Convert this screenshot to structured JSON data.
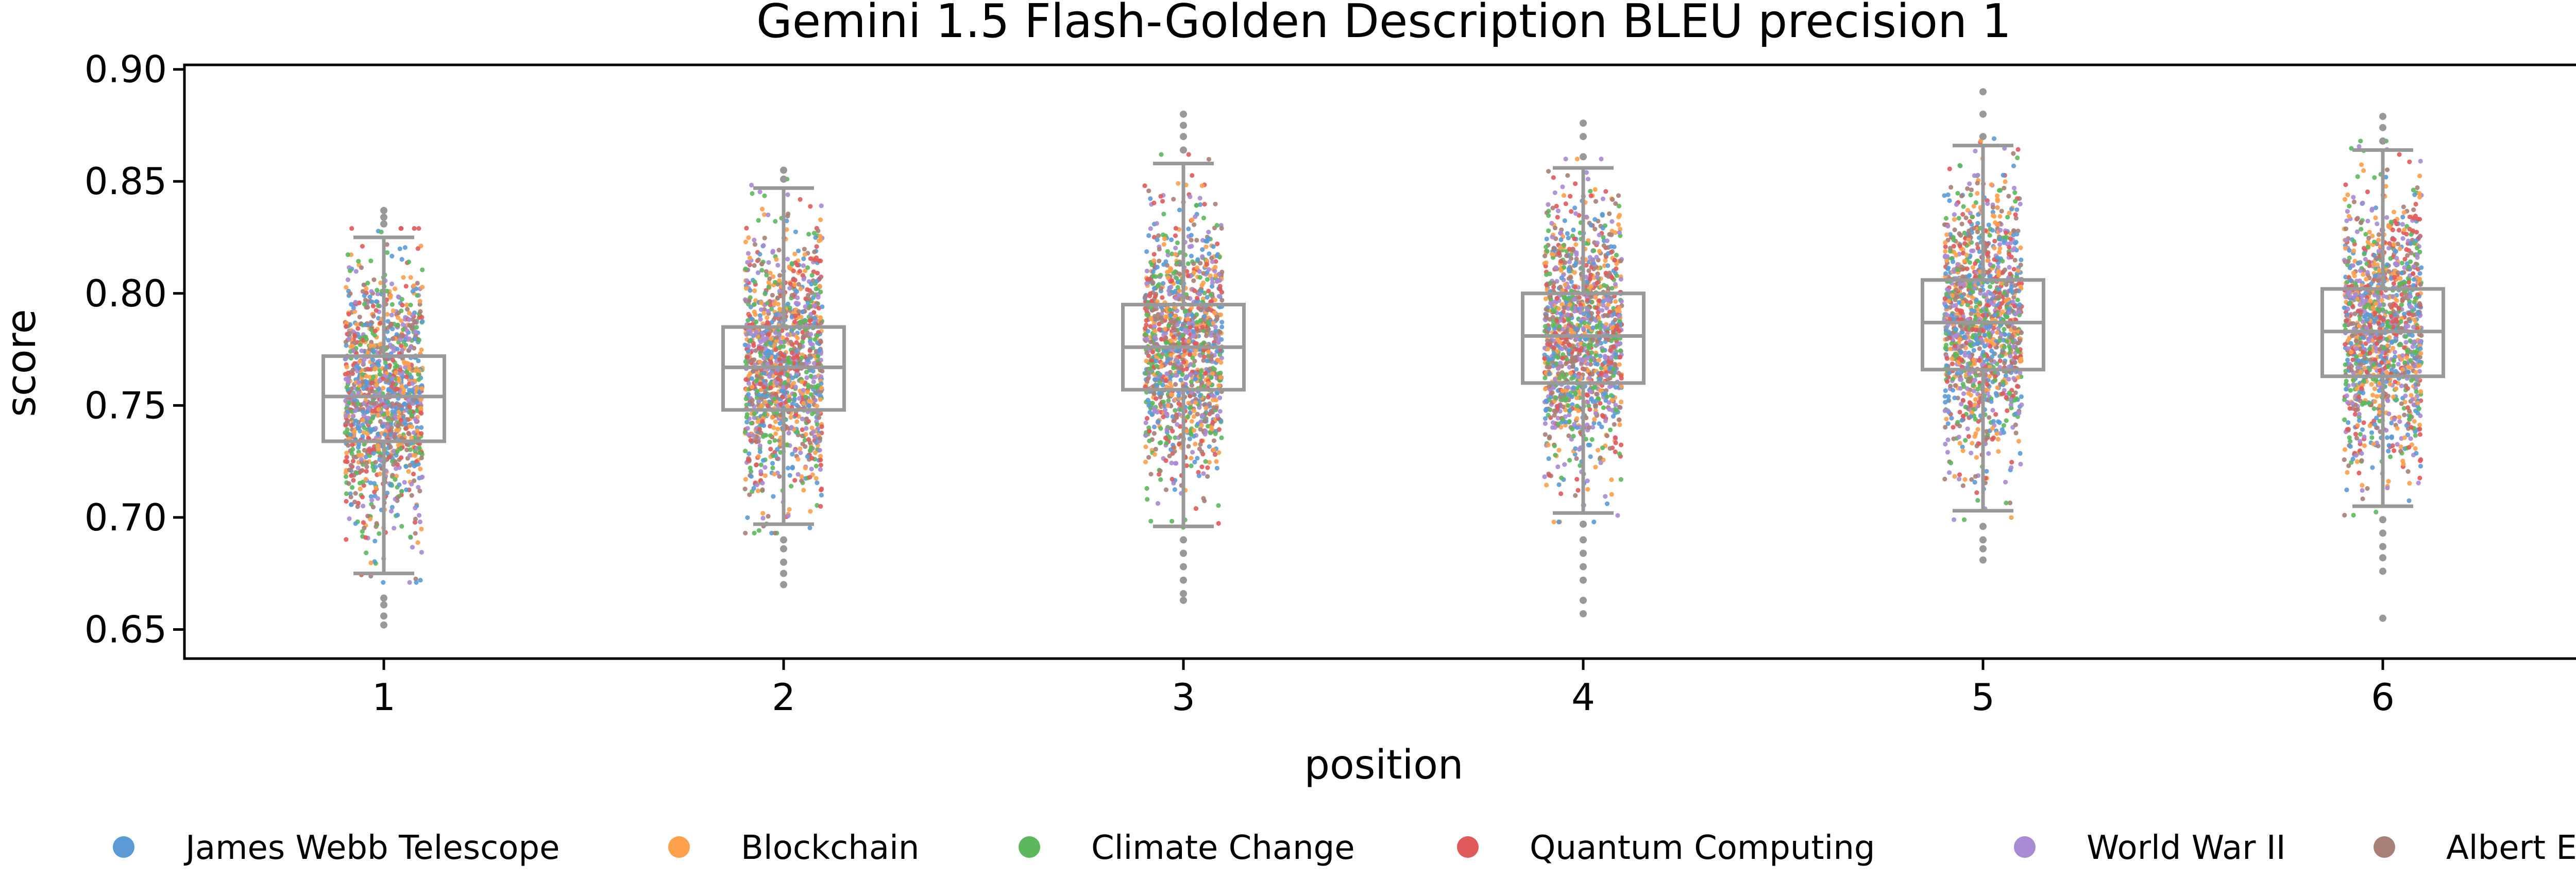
{
  "chart_data": {
    "type": "box+strip",
    "title": "Gemini 1.5 Flash-Golden Description BLEU precision 1",
    "xlabel": "position",
    "ylabel": "score",
    "ylim": [
      0.637,
      0.902
    ],
    "yticks": [
      "0.65",
      "0.70",
      "0.75",
      "0.80",
      "0.85",
      "0.90"
    ],
    "categories": [
      "1",
      "2",
      "3",
      "4",
      "5",
      "6"
    ],
    "boxes": [
      {
        "category": "1",
        "whisker_low": 0.675,
        "q1": 0.734,
        "median": 0.754,
        "q3": 0.772,
        "whisker_high": 0.825,
        "outliers": [
          0.664,
          0.661,
          0.656,
          0.652,
          0.831,
          0.834,
          0.837
        ]
      },
      {
        "category": "2",
        "whisker_low": 0.697,
        "q1": 0.748,
        "median": 0.767,
        "q3": 0.785,
        "whisker_high": 0.847,
        "outliers": [
          0.69,
          0.686,
          0.68,
          0.675,
          0.67,
          0.851,
          0.855
        ]
      },
      {
        "category": "3",
        "whisker_low": 0.696,
        "q1": 0.757,
        "median": 0.776,
        "q3": 0.795,
        "whisker_high": 0.858,
        "outliers": [
          0.69,
          0.684,
          0.678,
          0.672,
          0.666,
          0.663,
          0.864,
          0.87,
          0.875,
          0.88
        ]
      },
      {
        "category": "4",
        "whisker_low": 0.702,
        "q1": 0.76,
        "median": 0.781,
        "q3": 0.8,
        "whisker_high": 0.856,
        "outliers": [
          0.697,
          0.69,
          0.684,
          0.678,
          0.672,
          0.663,
          0.657,
          0.861,
          0.87,
          0.876
        ]
      },
      {
        "category": "5",
        "whisker_low": 0.703,
        "q1": 0.766,
        "median": 0.787,
        "q3": 0.806,
        "whisker_high": 0.866,
        "outliers": [
          0.696,
          0.69,
          0.686,
          0.681,
          0.87,
          0.88,
          0.89
        ]
      },
      {
        "category": "6",
        "whisker_low": 0.705,
        "q1": 0.763,
        "median": 0.783,
        "q3": 0.802,
        "whisker_high": 0.864,
        "outliers": [
          0.699,
          0.693,
          0.687,
          0.682,
          0.676,
          0.655,
          0.868,
          0.874,
          0.879
        ]
      }
    ],
    "series": [
      {
        "name": "James Webb Telescope",
        "color": "#5b9bd5"
      },
      {
        "name": "Blockchain",
        "color": "#ffa04d"
      },
      {
        "name": "Climate Change",
        "color": "#5cb85c"
      },
      {
        "name": "Quantum Computing",
        "color": "#e05a5a"
      },
      {
        "name": "World War II",
        "color": "#a98bd3"
      },
      {
        "name": "Albert Einstein",
        "color": "#a98078"
      }
    ],
    "legend_position": "bottom",
    "box_color": "#999999"
  }
}
